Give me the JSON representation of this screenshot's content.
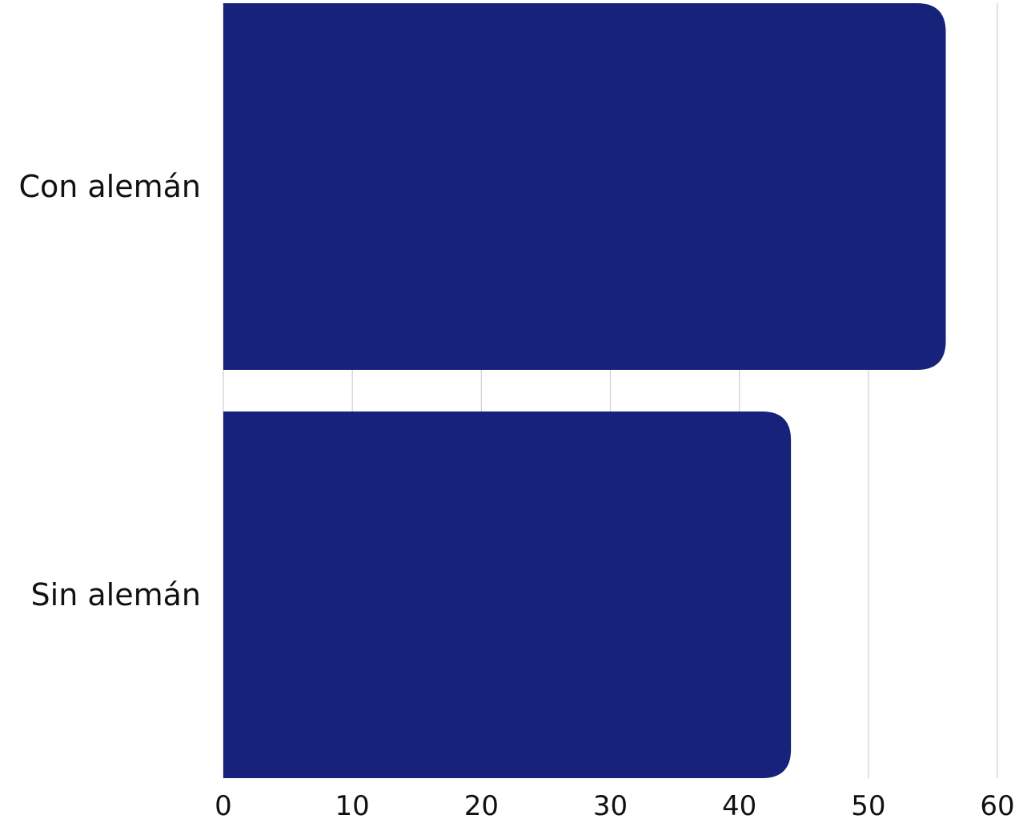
{
  "chart_data": {
    "type": "bar",
    "orientation": "horizontal",
    "categories": [
      "Con alemán",
      "Sin alemán"
    ],
    "values": [
      56,
      44
    ],
    "xlim": [
      0,
      60
    ],
    "xticks": [
      0,
      10,
      20,
      30,
      40,
      50,
      60
    ],
    "tick_labels": [
      "0",
      "10",
      "20",
      "30",
      "40",
      "50",
      "60"
    ],
    "title": "",
    "xlabel": "",
    "ylabel": "",
    "grid": "vertical",
    "legend": "none",
    "colors": {
      "bar": "#17227a",
      "gridline": "#cfcfcf",
      "text": "#111111"
    }
  }
}
